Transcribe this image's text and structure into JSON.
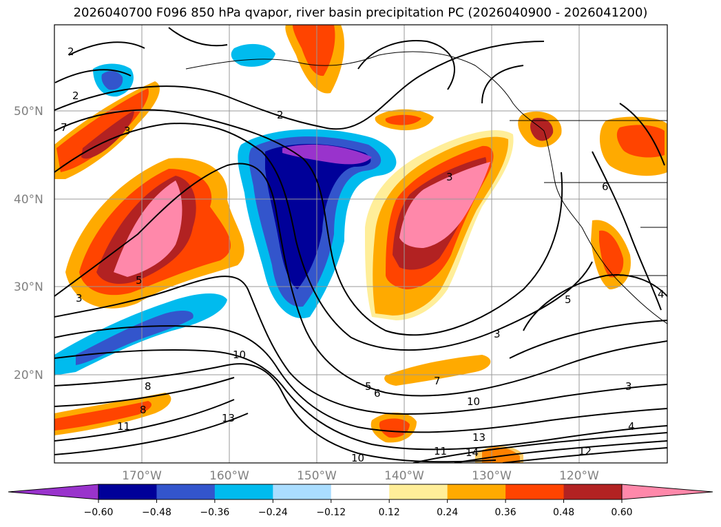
{
  "title": "2026040700 F096 850 hPa qvapor, river basin precipitation PC (2026040900 - 2026041200)",
  "map": {
    "lat_labels": [
      "50°N",
      "40°N",
      "30°N",
      "20°N"
    ],
    "lon_labels": [
      "170°W",
      "160°W",
      "150°W",
      "140°W",
      "130°W",
      "120°W"
    ],
    "lat_values": [
      50,
      40,
      30,
      20
    ],
    "lon_values": [
      -170,
      -160,
      -150,
      -140,
      -130,
      -120
    ],
    "lat_range": [
      10,
      60
    ],
    "lon_range": [
      -180,
      -110
    ],
    "contour_labels": [
      "2",
      "2",
      "2",
      "3",
      "3",
      "3",
      "3",
      "5",
      "5",
      "5",
      "6",
      "6",
      "7",
      "7",
      "8",
      "8",
      "10",
      "10",
      "10",
      "11",
      "11",
      "12",
      "13",
      "13",
      "14",
      "4",
      "4",
      "3"
    ]
  },
  "colorbar": {
    "ticks": [
      "-0.60",
      "-0.48",
      "-0.36",
      "-0.24",
      "-0.12",
      "0.12",
      "0.24",
      "0.36",
      "0.48",
      "0.60"
    ],
    "levels": [
      -0.72,
      -0.6,
      -0.48,
      -0.36,
      -0.24,
      -0.12,
      0.12,
      0.24,
      0.36,
      0.48,
      0.6,
      0.72
    ],
    "colors": [
      "#9933cc",
      "#000099",
      "#3355cc",
      "#00bbee",
      "#aaddff",
      "#ffffff",
      "#ffee99",
      "#ffaa00",
      "#ff4400",
      "#b22222",
      "#ff88aa"
    ]
  }
}
